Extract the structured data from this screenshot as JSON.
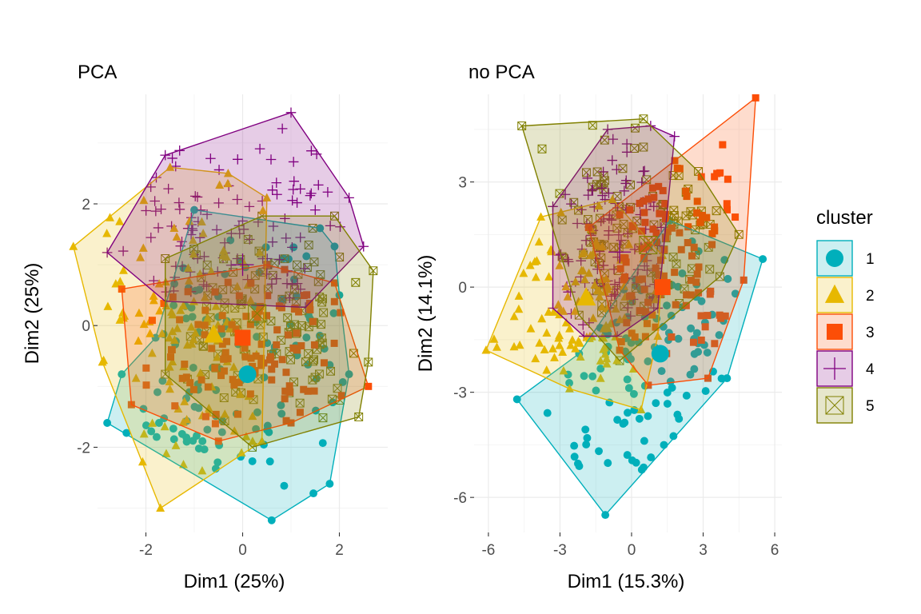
{
  "chart_data": [
    {
      "type": "scatter",
      "title": "PCA",
      "xlabel": "Dim1 (25%)",
      "ylabel": "Dim2 (25%)",
      "xlim": [
        -3.0,
        3.0
      ],
      "ylim": [
        -3.4,
        3.8
      ],
      "xticks": [
        -2,
        0,
        2
      ],
      "xtick_labels": [
        "-2",
        "0",
        "2"
      ],
      "yticks": [
        -2,
        0,
        2
      ],
      "ytick_labels": [
        "-2",
        "0",
        "2"
      ],
      "grid": true,
      "series": [
        {
          "name": "1",
          "hull": [
            [
              -2.8,
              -1.6
            ],
            [
              0.6,
              -3.2
            ],
            [
              1.8,
              -2.6
            ],
            [
              2.2,
              -0.8
            ],
            [
              2.0,
              0.5
            ],
            [
              1.9,
              1.3
            ],
            [
              1.6,
              1.6
            ],
            [
              -1.0,
              1.9
            ],
            [
              -1.8,
              -0.2
            ],
            [
              -2.5,
              -0.8
            ]
          ],
          "centroid": [
            0.1,
            -0.8
          ]
        },
        {
          "name": "2",
          "hull": [
            [
              -3.5,
              1.3
            ],
            [
              -1.5,
              2.6
            ],
            [
              -0.3,
              2.5
            ],
            [
              0.5,
              2.1
            ],
            [
              0.4,
              -1.9
            ],
            [
              -1.7,
              -3.0
            ],
            [
              -2.9,
              -0.6
            ]
          ],
          "centroid": [
            -0.6,
            -0.15
          ]
        },
        {
          "name": "3",
          "hull": [
            [
              -2.5,
              0.6
            ],
            [
              0.5,
              1.0
            ],
            [
              1.9,
              0.7
            ],
            [
              2.6,
              -1.0
            ],
            [
              1.0,
              -1.6
            ],
            [
              -0.5,
              -1.9
            ],
            [
              -2.3,
              -1.3
            ]
          ],
          "centroid": [
            0.0,
            -0.2
          ]
        },
        {
          "name": "4",
          "hull": [
            [
              -2.8,
              1.2
            ],
            [
              -1.6,
              2.8
            ],
            [
              1.0,
              3.5
            ],
            [
              2.2,
              2.1
            ],
            [
              2.5,
              1.3
            ],
            [
              1.3,
              0.3
            ],
            [
              -1.6,
              0.4
            ]
          ],
          "centroid": [
            0.0,
            1.0
          ]
        },
        {
          "name": "5",
          "hull": [
            [
              -1.6,
              1.1
            ],
            [
              0.4,
              1.8
            ],
            [
              1.9,
              1.8
            ],
            [
              2.7,
              0.9
            ],
            [
              2.6,
              -0.6
            ],
            [
              2.4,
              -1.5
            ],
            [
              0.2,
              -2.0
            ],
            [
              -1.6,
              -0.8
            ]
          ],
          "centroid": [
            0.3,
            0.2
          ]
        }
      ]
    },
    {
      "type": "scatter",
      "title": "no PCA",
      "xlabel": "Dim1 (15.3%)",
      "ylabel": "Dim2 (14.1%)",
      "xlim": [
        -6.6,
        6.3
      ],
      "ylim": [
        -7.0,
        5.5
      ],
      "xticks": [
        -6,
        -3,
        0,
        3,
        6
      ],
      "xtick_labels": [
        "-6",
        "-3",
        "0",
        "3",
        "6"
      ],
      "yticks": [
        -6,
        -3,
        0,
        3
      ],
      "ytick_labels": [
        "-6",
        "-3",
        "0",
        "3"
      ],
      "grid": true,
      "series": [
        {
          "name": "1",
          "hull": [
            [
              -4.8,
              -3.2
            ],
            [
              -1.1,
              -6.5
            ],
            [
              4.0,
              -2.6
            ],
            [
              5.5,
              0.8
            ],
            [
              1.6,
              1.9
            ],
            [
              -2.2,
              -1.9
            ]
          ],
          "centroid": [
            1.2,
            -1.9
          ]
        },
        {
          "name": "2",
          "hull": [
            [
              -6.1,
              -1.8
            ],
            [
              -3.8,
              2.0
            ],
            [
              -0.8,
              2.5
            ],
            [
              1.3,
              0.9
            ],
            [
              1.1,
              -1.4
            ],
            [
              0.4,
              -3.5
            ],
            [
              -2.6,
              -2.9
            ]
          ],
          "centroid": [
            -1.9,
            -0.3
          ]
        },
        {
          "name": "3",
          "hull": [
            [
              -1.8,
              1.7
            ],
            [
              5.2,
              5.4
            ],
            [
              4.7,
              0.2
            ],
            [
              3.2,
              -2.6
            ],
            [
              0.7,
              -2.8
            ],
            [
              -0.5,
              -1.8
            ]
          ],
          "centroid": [
            1.3,
            0.0
          ]
        },
        {
          "name": "4",
          "hull": [
            [
              -3.3,
              2.3
            ],
            [
              -1.0,
              4.5
            ],
            [
              0.8,
              4.6
            ],
            [
              1.8,
              4.3
            ],
            [
              1.1,
              -0.6
            ],
            [
              -0.6,
              -1.4
            ],
            [
              -2.0,
              -1.4
            ],
            [
              -3.3,
              -0.6
            ]
          ],
          "centroid": [
            -0.5,
            1.0
          ]
        },
        {
          "name": "5",
          "hull": [
            [
              -4.6,
              4.6
            ],
            [
              0.5,
              4.8
            ],
            [
              2.8,
              3.3
            ],
            [
              4.5,
              1.5
            ],
            [
              3.7,
              0.3
            ],
            [
              -0.5,
              -2.1
            ],
            [
              -2.2,
              -0.8
            ]
          ],
          "centroid": [
            0.7,
            1.2
          ]
        }
      ]
    }
  ],
  "legend": {
    "title": "cluster",
    "placement": "right",
    "entries": [
      {
        "label": "1",
        "color": "#00AFBB",
        "shape": "circle"
      },
      {
        "label": "2",
        "color": "#E7B800",
        "shape": "triangle"
      },
      {
        "label": "3",
        "color": "#FC4E07",
        "shape": "square"
      },
      {
        "label": "4",
        "color": "#800080",
        "shape": "plus"
      },
      {
        "label": "5",
        "color": "#808000",
        "shape": "boxed-x"
      }
    ]
  }
}
